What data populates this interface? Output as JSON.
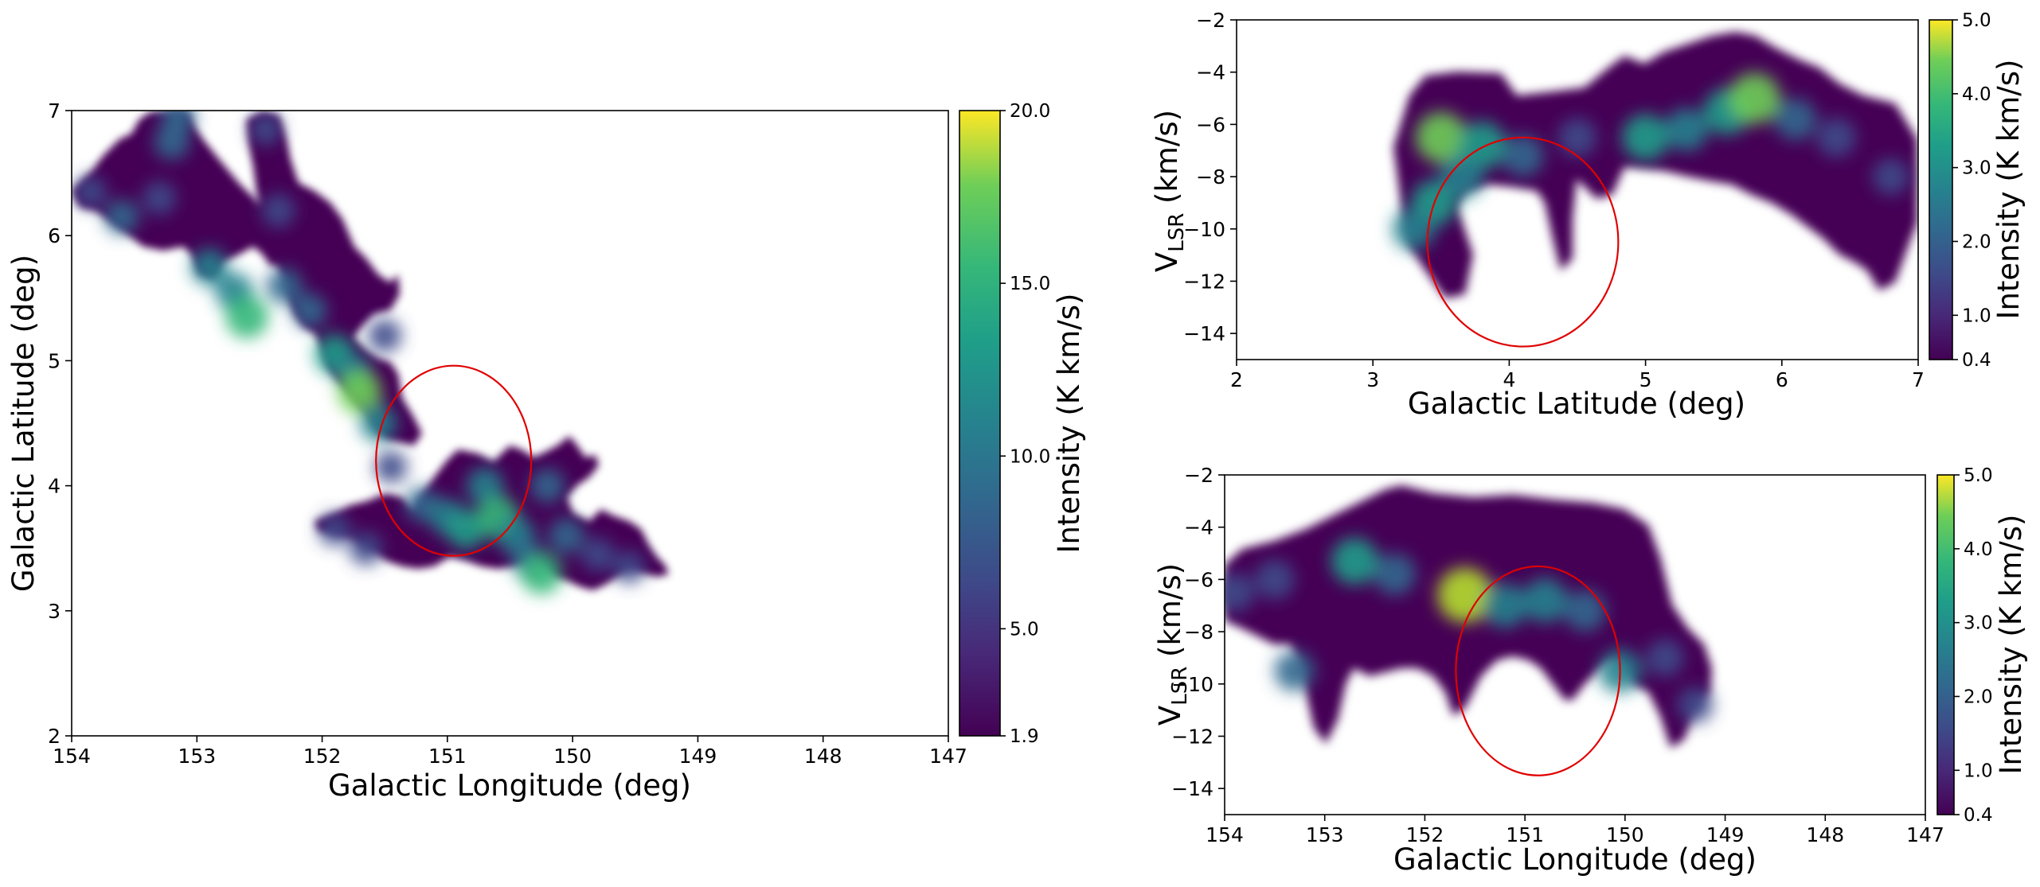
{
  "chart_data": [
    {
      "type": "heatmap",
      "panel": "integrated-intensity-map",
      "xlabel": "Galactic Longitude (deg)",
      "ylabel": "Galactic Latitude (deg)",
      "xlim": [
        154,
        147
      ],
      "ylim": [
        2,
        7
      ],
      "xticks": [
        "154",
        "153",
        "152",
        "151",
        "150",
        "149",
        "148",
        "147"
      ],
      "yticks": [
        "2",
        "3",
        "4",
        "5",
        "6",
        "7"
      ],
      "colormap": "viridis",
      "colorbar": {
        "label": "Intensity (K km/s)",
        "range": [
          1.9,
          20.0
        ],
        "ticks": [
          "1.9",
          "5.0",
          "10.0",
          "15.0",
          "20.0"
        ]
      },
      "emission_blobs": [
        {
          "l": 153.85,
          "b": 6.35,
          "value": 5
        },
        {
          "l": 153.6,
          "b": 6.15,
          "value": 7
        },
        {
          "l": 153.3,
          "b": 6.3,
          "value": 6
        },
        {
          "l": 153.2,
          "b": 6.75,
          "value": 8
        },
        {
          "l": 153.15,
          "b": 6.95,
          "value": 7
        },
        {
          "l": 152.9,
          "b": 5.75,
          "value": 9
        },
        {
          "l": 152.7,
          "b": 5.55,
          "value": 10
        },
        {
          "l": 152.6,
          "b": 5.35,
          "value": 14
        },
        {
          "l": 152.45,
          "b": 6.85,
          "value": 5
        },
        {
          "l": 152.35,
          "b": 6.2,
          "value": 6
        },
        {
          "l": 152.3,
          "b": 5.6,
          "value": 8
        },
        {
          "l": 152.1,
          "b": 5.4,
          "value": 7
        },
        {
          "l": 151.9,
          "b": 5.05,
          "value": 12
        },
        {
          "l": 151.75,
          "b": 4.9,
          "value": 10
        },
        {
          "l": 151.7,
          "b": 4.75,
          "value": 15
        },
        {
          "l": 151.55,
          "b": 4.5,
          "value": 9
        },
        {
          "l": 151.5,
          "b": 5.2,
          "value": 6
        },
        {
          "l": 151.45,
          "b": 4.15,
          "value": 5
        },
        {
          "l": 151.2,
          "b": 3.85,
          "value": 7
        },
        {
          "l": 151.0,
          "b": 3.75,
          "value": 9
        },
        {
          "l": 150.85,
          "b": 3.65,
          "value": 11
        },
        {
          "l": 150.7,
          "b": 4.0,
          "value": 9
        },
        {
          "l": 150.6,
          "b": 3.75,
          "value": 14
        },
        {
          "l": 150.45,
          "b": 3.6,
          "value": 10
        },
        {
          "l": 150.35,
          "b": 3.4,
          "value": 8
        },
        {
          "l": 150.25,
          "b": 3.3,
          "value": 13
        },
        {
          "l": 150.2,
          "b": 4.0,
          "value": 7
        },
        {
          "l": 150.05,
          "b": 3.6,
          "value": 8
        },
        {
          "l": 149.8,
          "b": 3.45,
          "value": 6
        },
        {
          "l": 149.55,
          "b": 3.35,
          "value": 5
        },
        {
          "l": 151.9,
          "b": 3.65,
          "value": 5
        },
        {
          "l": 151.65,
          "b": 3.5,
          "value": 6
        }
      ],
      "circle": {
        "center_l": 150.95,
        "center_b": 4.2,
        "radius_l": 0.62,
        "radius_b": 0.76,
        "color": "#e00000"
      }
    },
    {
      "type": "heatmap",
      "panel": "velocity-latitude",
      "xlabel": "Galactic Latitude (deg)",
      "ylabel": "V",
      "ylabel_sub": "LSR",
      "ylabel_unit": " (km/s)",
      "xlim": [
        2,
        7
      ],
      "ylim": [
        -15,
        -2
      ],
      "xticks": [
        "2",
        "3",
        "4",
        "5",
        "6",
        "7"
      ],
      "yticks": [
        "−14",
        "−12",
        "−10",
        "−8",
        "−6",
        "−4",
        "−2"
      ],
      "colormap": "viridis",
      "colorbar": {
        "label": "Intensity (K km/s)",
        "range": [
          0.4,
          5.0
        ],
        "ticks": [
          "0.4",
          "1.0",
          "2.0",
          "3.0",
          "4.0",
          "5.0"
        ]
      },
      "emission_blobs": [
        {
          "x": 3.5,
          "v": -6.5,
          "value": 3.8
        },
        {
          "x": 3.8,
          "v": -6.8,
          "value": 3.2
        },
        {
          "x": 3.45,
          "v": -9.0,
          "value": 2.8
        },
        {
          "x": 3.3,
          "v": -10.0,
          "value": 2.2
        },
        {
          "x": 3.65,
          "v": -8.0,
          "value": 2.4
        },
        {
          "x": 4.1,
          "v": -7.2,
          "value": 2.0
        },
        {
          "x": 4.5,
          "v": -6.5,
          "value": 1.4
        },
        {
          "x": 5.0,
          "v": -6.5,
          "value": 3.0
        },
        {
          "x": 5.3,
          "v": -6.2,
          "value": 2.2
        },
        {
          "x": 5.6,
          "v": -5.5,
          "value": 3.0
        },
        {
          "x": 5.8,
          "v": -5.0,
          "value": 3.8
        },
        {
          "x": 6.1,
          "v": -5.8,
          "value": 2.0
        },
        {
          "x": 6.4,
          "v": -6.5,
          "value": 1.5
        },
        {
          "x": 6.8,
          "v": -8.0,
          "value": 1.0
        }
      ],
      "circle": {
        "center_x": 4.1,
        "center_v": -10.5,
        "radius_x": 0.7,
        "radius_v": 4.0,
        "color": "#e00000"
      }
    },
    {
      "type": "heatmap",
      "panel": "velocity-longitude",
      "xlabel": "Galactic Longitude (deg)",
      "ylabel": "V",
      "ylabel_sub": "LSR",
      "ylabel_unit": " (km/s)",
      "xlim": [
        154,
        147
      ],
      "ylim": [
        -15,
        -2
      ],
      "xticks": [
        "154",
        "153",
        "152",
        "151",
        "150",
        "149",
        "148",
        "147"
      ],
      "yticks": [
        "−14",
        "−12",
        "−10",
        "−8",
        "−6",
        "−4",
        "−2"
      ],
      "colormap": "viridis",
      "colorbar": {
        "label": "Intensity (K km/s)",
        "range": [
          0.4,
          5.0
        ],
        "ticks": [
          "0.4",
          "1.0",
          "2.0",
          "3.0",
          "4.0",
          "5.0"
        ]
      },
      "emission_blobs": [
        {
          "l": 153.9,
          "v": -6.5,
          "value": 1.5
        },
        {
          "l": 153.5,
          "v": -6.0,
          "value": 1.6
        },
        {
          "l": 153.3,
          "v": -9.5,
          "value": 1.8
        },
        {
          "l": 152.7,
          "v": -5.3,
          "value": 3.0
        },
        {
          "l": 152.3,
          "v": -5.8,
          "value": 2.0
        },
        {
          "l": 151.6,
          "v": -6.6,
          "value": 4.6
        },
        {
          "l": 151.2,
          "v": -7.0,
          "value": 2.5
        },
        {
          "l": 150.8,
          "v": -6.8,
          "value": 2.6
        },
        {
          "l": 150.4,
          "v": -7.2,
          "value": 2.0
        },
        {
          "l": 150.05,
          "v": -9.5,
          "value": 2.3
        },
        {
          "l": 149.6,
          "v": -9.0,
          "value": 1.2
        },
        {
          "l": 149.3,
          "v": -10.8,
          "value": 0.9
        }
      ],
      "circle": {
        "center_l": 150.87,
        "center_v": -9.5,
        "radius_l": 0.82,
        "radius_v": 4.0,
        "color": "#e00000"
      }
    }
  ]
}
